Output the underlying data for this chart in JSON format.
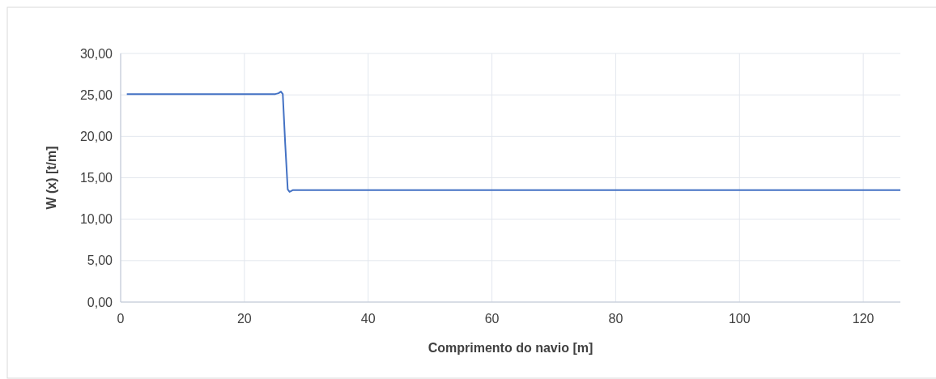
{
  "chart_data": {
    "type": "line",
    "xlabel": "Comprimento do navio [m]",
    "ylabel": "W (x) [t/m]",
    "x": [
      1,
      25,
      25.5,
      25.9,
      26.2,
      26.6,
      27,
      27.3,
      27.8,
      126
    ],
    "series": [
      {
        "color": "#4472c4",
        "values": [
          25.1,
          25.1,
          25.2,
          25.4,
          25.1,
          19,
          13.6,
          13.3,
          13.5,
          13.5
        ]
      }
    ],
    "xlim": [
      0,
      126
    ],
    "xticks": [
      0,
      20,
      40,
      60,
      80,
      100,
      120
    ],
    "ylim": [
      0,
      30
    ],
    "yticks": [
      {
        "value": 0,
        "label": "0,00"
      },
      {
        "value": 5,
        "label": "5,00"
      },
      {
        "value": 10,
        "label": "10,00"
      },
      {
        "value": 15,
        "label": "15,00"
      },
      {
        "value": 20,
        "label": "20,00"
      },
      {
        "value": 25,
        "label": "25,00"
      },
      {
        "value": 30,
        "label": "30,00"
      }
    ],
    "grid": true,
    "marker": "none",
    "line_style": "solid"
  }
}
